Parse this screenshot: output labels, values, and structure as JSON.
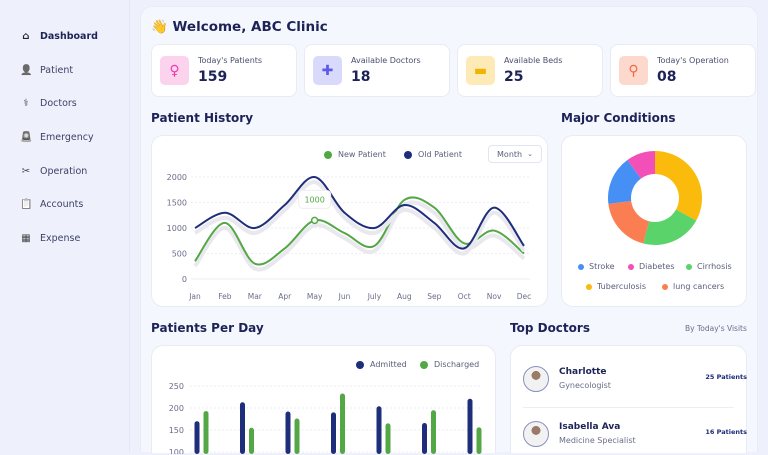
{
  "sidebar": {
    "items": [
      {
        "label": "Dashboard",
        "icon": "home-icon",
        "active": true
      },
      {
        "label": "Patient",
        "icon": "user-plus-icon"
      },
      {
        "label": "Doctors",
        "icon": "doctor-icon"
      },
      {
        "label": "Emergency",
        "icon": "siren-icon"
      },
      {
        "label": "Operation",
        "icon": "scissors-icon"
      },
      {
        "label": "Accounts",
        "icon": "clipboard-icon"
      },
      {
        "label": "Expense",
        "icon": "receipt-icon"
      }
    ]
  },
  "header": {
    "welcome": "👋 Welcome, ABC Clinic"
  },
  "stats": [
    {
      "label": "Today's Patients",
      "value": "159",
      "icon": "patient-icon",
      "color": "#fcd3ec",
      "fg": "#e83fae"
    },
    {
      "label": "Available Doctors",
      "value": "18",
      "icon": "medical-kit-icon",
      "color": "#d9d9fb",
      "fg": "#5b5be8"
    },
    {
      "label": "Available Beds",
      "value": "25",
      "icon": "bed-icon",
      "color": "#fdeab6",
      "fg": "#f0b400"
    },
    {
      "label": "Today's Operation",
      "value": "08",
      "icon": "syringe-icon",
      "color": "#fdd8cc",
      "fg": "#f06a45"
    }
  ],
  "patient_history": {
    "title": "Patient History",
    "filter": "Month",
    "tooltip": "1000",
    "chart_data": {
      "type": "line",
      "categories": [
        "Jan",
        "Feb",
        "Mar",
        "Apr",
        "May",
        "Jun",
        "July",
        "Aug",
        "Sep",
        "Oct",
        "Nov",
        "Dec"
      ],
      "yticks": [
        0,
        500,
        1000,
        1500,
        2000
      ],
      "ylim": [
        0,
        2000
      ],
      "legend": "top-right",
      "series": [
        {
          "name": "New Patient",
          "color": "#53a845",
          "values": [
            350,
            1100,
            300,
            600,
            1150,
            900,
            650,
            1550,
            1400,
            700,
            950,
            500
          ]
        },
        {
          "name": "Old Patient",
          "color": "#1f2e7a",
          "values": [
            1000,
            1300,
            1000,
            1450,
            2000,
            1300,
            1000,
            1450,
            1100,
            600,
            1400,
            650
          ]
        }
      ]
    }
  },
  "conditions": {
    "title": "Major Conditions",
    "chart_data": {
      "type": "pie",
      "donut": true,
      "slices": [
        {
          "name": "Tuberculosis",
          "value": 33,
          "color": "#fbbb0c"
        },
        {
          "name": "Cirrhosis",
          "value": 21,
          "color": "#5ad36a"
        },
        {
          "name": "lung cancers",
          "value": 19,
          "color": "#fa7e52"
        },
        {
          "name": "Stroke",
          "value": 17,
          "color": "#4690f5"
        },
        {
          "name": "Diabetes",
          "value": 10,
          "color": "#f34fb8"
        }
      ],
      "legend_order": [
        "Stroke",
        "Diabetes",
        "Cirrhosis",
        "Tuberculosis",
        "lung cancers"
      ]
    }
  },
  "per_day": {
    "title": "Patients Per Day",
    "chart_data": {
      "type": "bar",
      "yticks": [
        100,
        150,
        200,
        250
      ],
      "legend": "top-right",
      "series": [
        {
          "name": "Admitted",
          "color": "#1f2e7a",
          "values": [
            170,
            213,
            192,
            190,
            204,
            166,
            221
          ]
        },
        {
          "name": "Discharged",
          "color": "#53a845",
          "values": [
            193,
            155,
            176,
            233,
            165,
            195,
            156
          ]
        }
      ]
    }
  },
  "top_doctors": {
    "title": "Top Doctors",
    "subtitle": "By Today's Visits",
    "items": [
      {
        "name": "Charlotte",
        "specialty": "Gynecologist",
        "count": "25 Patients"
      },
      {
        "name": "Isabella Ava",
        "specialty": "Medicine Specialist",
        "count": "16 Patients"
      }
    ]
  }
}
